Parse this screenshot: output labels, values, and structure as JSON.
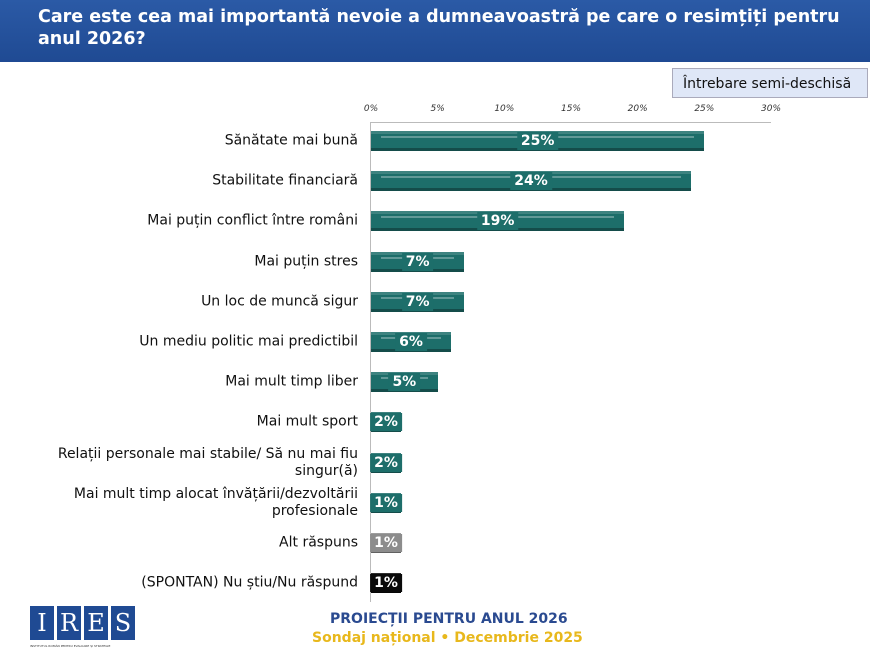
{
  "header": {
    "title": "Care este cea mai importantă nevoie a dumneavoastră pe care o resimțiți pentru anul 2026?"
  },
  "badge": "Întrebare semi-deschisă",
  "footer": {
    "line1": "PROIECȚII PENTRU ANUL 2026",
    "line2": "Sondaj național • Decembrie 2025",
    "logo": "IRES",
    "logo_subtitle": "INSTITUTUL ROMÂN PENTRU EVALUARE ȘI STRATEGIE"
  },
  "chart_data": {
    "type": "bar",
    "orientation": "horizontal",
    "xlim": [
      0,
      30
    ],
    "ticks": [
      "0%",
      "5%",
      "10%",
      "15%",
      "20%",
      "25%",
      "30%"
    ],
    "categories": [
      "Sănătate mai bună",
      "Stabilitate financiară",
      "Mai puțin conflict între români",
      "Mai puțin stres",
      "Un loc de muncă sigur",
      "Un mediu politic mai predictibil",
      "Mai mult timp liber",
      "Mai mult sport",
      "Relații personale mai stabile/ Să nu mai fiu singur(ă)",
      "Mai mult timp alocat învățării/dezvoltării profesionale",
      "Alt răspuns",
      "(SPONTAN) Nu știu/Nu răspund"
    ],
    "values": [
      25,
      24,
      19,
      7,
      7,
      6,
      5,
      2,
      2,
      1,
      1,
      1
    ],
    "labels": [
      "25%",
      "24%",
      "19%",
      "7%",
      "7%",
      "6%",
      "5%",
      "2%",
      "2%",
      "1%",
      "1%",
      "1%"
    ],
    "colors": [
      "#1d6e6a",
      "#1d6e6a",
      "#1d6e6a",
      "#1d6e6a",
      "#1d6e6a",
      "#1d6e6a",
      "#1d6e6a",
      "#1d6e6a",
      "#1d6e6a",
      "#1d6e6a",
      "#8c8c8c",
      "#0a0a0a"
    ]
  }
}
